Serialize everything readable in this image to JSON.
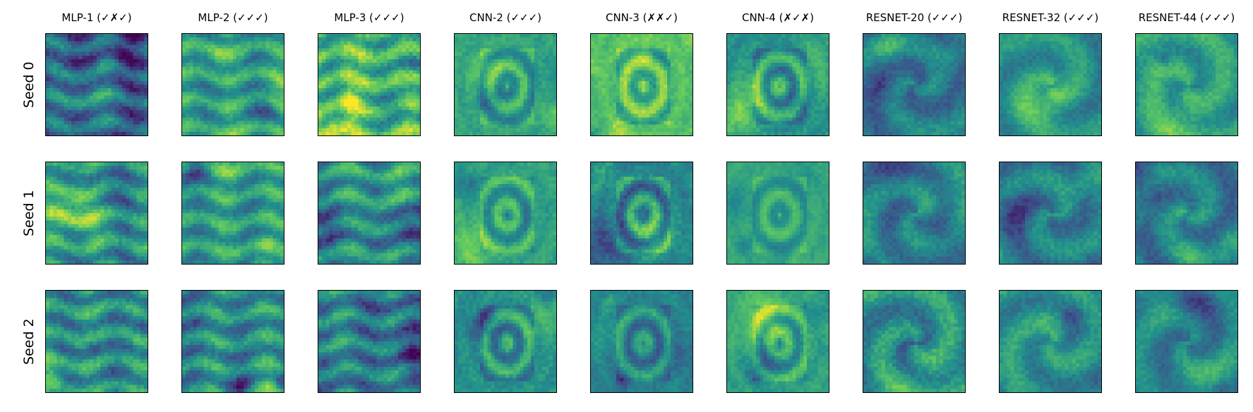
{
  "chart_data": {
    "type": "heatmap",
    "colormap": "viridis",
    "axes_visible": false,
    "columns": [
      "MLP-1 (✓✗✓)",
      "MLP-2 (✓✓✓)",
      "MLP-3 (✓✓✓)",
      "CNN-2 (✓✓✓)",
      "CNN-3 (✗✗✓)",
      "CNN-4 (✗✓✗)",
      "RESNET-20 (✓✓✓)",
      "RESNET-32 (✓✓✓)",
      "RESNET-44 (✓✓✓)"
    ],
    "rows": [
      "Seed 0",
      "Seed 1",
      "Seed 2"
    ],
    "panels": [
      [
        {
          "pattern": "stripes",
          "base": 0.3,
          "contrast": 0.5,
          "seed": 11
        },
        {
          "pattern": "stripes",
          "base": 0.55,
          "contrast": 0.45,
          "seed": 12
        },
        {
          "pattern": "stripes",
          "base": 0.68,
          "contrast": 0.55,
          "seed": 13
        },
        {
          "pattern": "glyph",
          "base": 0.58,
          "contrast": 0.4,
          "seed": 14
        },
        {
          "pattern": "glyph",
          "base": 0.7,
          "contrast": 0.45,
          "seed": 15
        },
        {
          "pattern": "glyph",
          "base": 0.5,
          "contrast": 0.45,
          "seed": 16
        },
        {
          "pattern": "smooth",
          "base": 0.4,
          "contrast": 0.45,
          "seed": 17
        },
        {
          "pattern": "smooth",
          "base": 0.48,
          "contrast": 0.4,
          "seed": 18
        },
        {
          "pattern": "smooth",
          "base": 0.55,
          "contrast": 0.45,
          "seed": 19
        }
      ],
      [
        {
          "pattern": "stripes",
          "base": 0.5,
          "contrast": 0.5,
          "seed": 21
        },
        {
          "pattern": "stripes",
          "base": 0.55,
          "contrast": 0.45,
          "seed": 22
        },
        {
          "pattern": "stripes",
          "base": 0.52,
          "contrast": 0.5,
          "seed": 23
        },
        {
          "pattern": "glyph",
          "base": 0.58,
          "contrast": 0.4,
          "seed": 24
        },
        {
          "pattern": "glyph",
          "base": 0.45,
          "contrast": 0.5,
          "seed": 25
        },
        {
          "pattern": "glyph",
          "base": 0.6,
          "contrast": 0.3,
          "seed": 26
        },
        {
          "pattern": "smooth",
          "base": 0.45,
          "contrast": 0.45,
          "seed": 27
        },
        {
          "pattern": "smooth",
          "base": 0.42,
          "contrast": 0.45,
          "seed": 28
        },
        {
          "pattern": "smooth",
          "base": 0.4,
          "contrast": 0.45,
          "seed": 29
        }
      ],
      [
        {
          "pattern": "stripes",
          "base": 0.5,
          "contrast": 0.5,
          "seed": 31
        },
        {
          "pattern": "stripes",
          "base": 0.48,
          "contrast": 0.5,
          "seed": 32
        },
        {
          "pattern": "stripes",
          "base": 0.45,
          "contrast": 0.5,
          "seed": 33
        },
        {
          "pattern": "glyph",
          "base": 0.5,
          "contrast": 0.45,
          "seed": 34
        },
        {
          "pattern": "glyph",
          "base": 0.45,
          "contrast": 0.4,
          "seed": 35
        },
        {
          "pattern": "glyph",
          "base": 0.58,
          "contrast": 0.4,
          "seed": 36
        },
        {
          "pattern": "smooth",
          "base": 0.5,
          "contrast": 0.55,
          "seed": 37
        },
        {
          "pattern": "smooth",
          "base": 0.5,
          "contrast": 0.45,
          "seed": 38
        },
        {
          "pattern": "smooth",
          "base": 0.42,
          "contrast": 0.4,
          "seed": 39
        }
      ]
    ]
  }
}
